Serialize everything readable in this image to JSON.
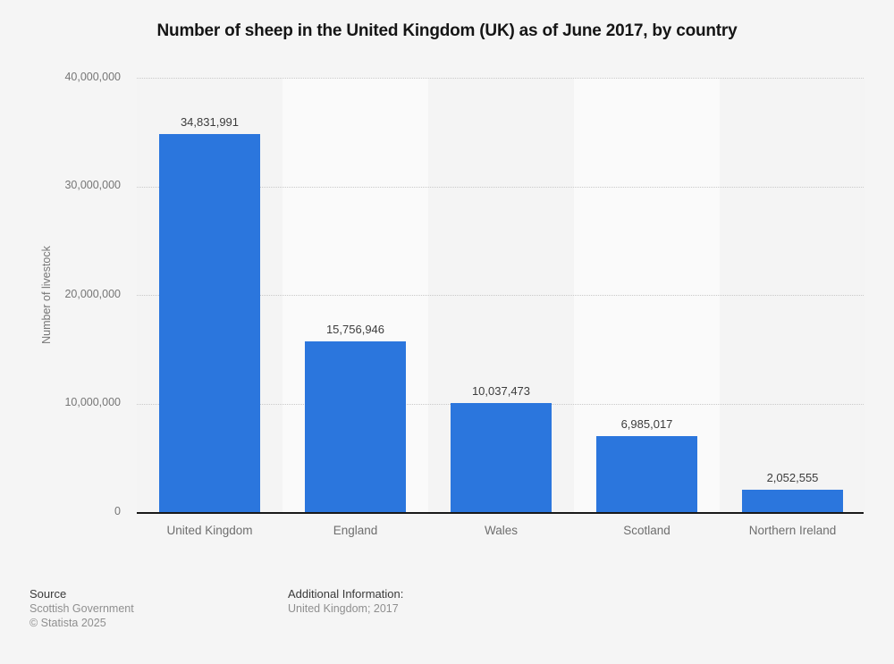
{
  "page": {
    "background_color": "#f5f5f5"
  },
  "chart_data": {
    "type": "bar",
    "title": "Number of sheep in the United Kingdom (UK) as of June 2017, by country",
    "xlabel": "",
    "ylabel": "Number of livestock",
    "categories": [
      "United Kingdom",
      "England",
      "Wales",
      "Scotland",
      "Northern Ireland"
    ],
    "values": [
      34831991,
      15756946,
      10037473,
      6985017,
      2052555
    ],
    "value_labels": [
      "34,831,991",
      "15,756,946",
      "10,037,473",
      "6,985,017",
      "2,052,555"
    ],
    "ylim": [
      0,
      40000000
    ],
    "yticks": [
      0,
      10000000,
      20000000,
      30000000,
      40000000
    ],
    "ytick_labels": [
      "0",
      "10,000,000",
      "20,000,000",
      "30,000,000",
      "40,000,000"
    ],
    "grid": "horizontal-dotted",
    "legend": "none",
    "bar_color": "#2b76dd",
    "band_color_odd": "#f4f4f4",
    "band_color_even": "#fafafa"
  },
  "footer": {
    "source_label": "Source",
    "source_name": "Scottish Government",
    "copyright": "© Statista 2025",
    "additional_label": "Additional Information:",
    "additional_value": "United Kingdom; 2017"
  }
}
